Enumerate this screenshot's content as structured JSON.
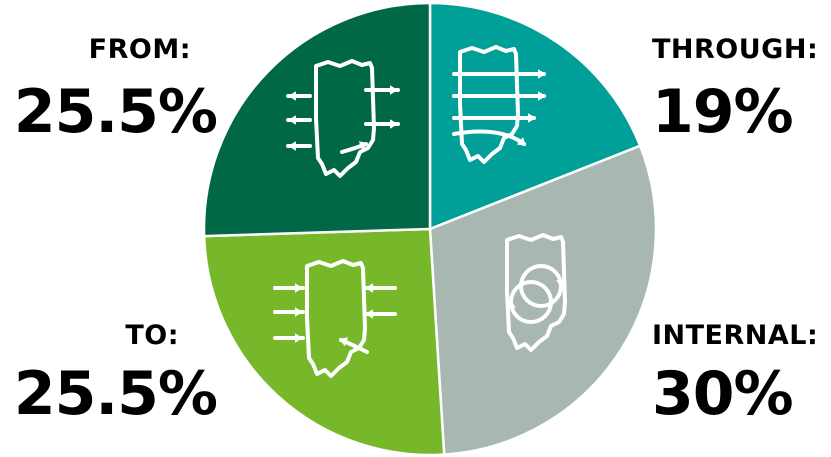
{
  "chart_data": {
    "type": "pie",
    "title": "",
    "slices": [
      {
        "key": "through",
        "label": "THROUGH:",
        "value": 19,
        "display": "19%",
        "color": "#00a098",
        "icon": "state-outline-through-arrows-icon"
      },
      {
        "key": "internal",
        "label": "INTERNAL:",
        "value": 30,
        "display": "30%",
        "color": "#a9b7b2",
        "icon": "state-outline-circular-arrows-icon"
      },
      {
        "key": "to",
        "label": "TO:",
        "value": 25.5,
        "display": "25.5%",
        "color": "#76b82a",
        "icon": "state-outline-inbound-arrows-icon"
      },
      {
        "key": "from",
        "label": "FROM:",
        "value": 25.5,
        "display": "25.5%",
        "color": "#006847",
        "icon": "state-outline-outbound-arrows-icon"
      }
    ],
    "legend": "none"
  },
  "labels": {
    "from": {
      "name": "FROM:",
      "value": "25.5%"
    },
    "through": {
      "name": "THROUGH:",
      "value": "19%"
    },
    "to": {
      "name": "TO:",
      "value": "25.5%"
    },
    "internal": {
      "name": "INTERNAL:",
      "value": "30%"
    }
  }
}
